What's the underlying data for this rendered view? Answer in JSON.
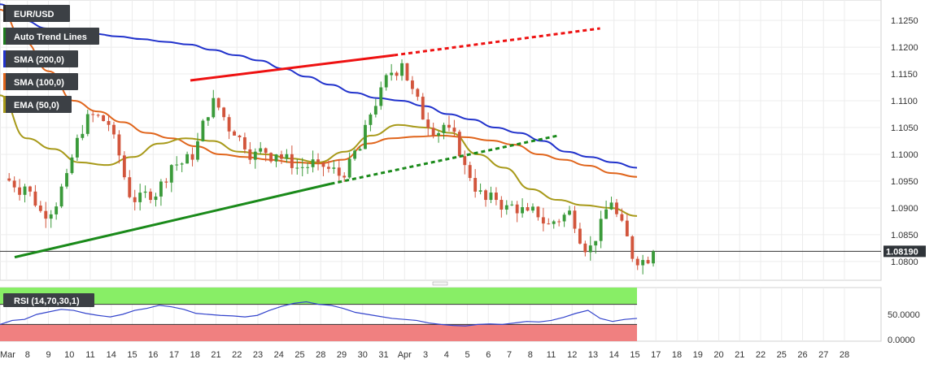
{
  "symbol": "EUR/USD",
  "legend": [
    {
      "label": "EUR/USD",
      "color": "#2b2b2b"
    },
    {
      "label": "Auto Trend Lines",
      "color": "#1e7b1e"
    },
    {
      "label": "SMA (200,0)",
      "color": "#2233cc"
    },
    {
      "label": "SMA (100,0)",
      "color": "#e0651c"
    },
    {
      "label": "EMA (50,0)",
      "color": "#a89a1a"
    }
  ],
  "price_label": "1.08190",
  "rsi_label": "RSI (14,70,30,1)",
  "colors": {
    "up": "#3a9a3a",
    "down": "#d2553c",
    "sma200": "#2233cc",
    "sma100": "#e0651c",
    "ema50": "#a89a1a",
    "trend_red": "#ee1111",
    "trend_green": "#1a8a1a",
    "rsi_line": "#3344cc",
    "rsi_over": "#88ee66",
    "rsi_under": "#f08080"
  },
  "chart_data": {
    "type": "candlestick",
    "title": "EUR/USD",
    "xlabel": "",
    "ylabel": "",
    "x_ticks": [
      "Mar",
      "8",
      "9",
      "10",
      "11",
      "14",
      "15",
      "16",
      "17",
      "18",
      "21",
      "22",
      "23",
      "24",
      "25",
      "28",
      "29",
      "30",
      "31",
      "Apr",
      "3",
      "4",
      "5",
      "6",
      "7",
      "8",
      "11",
      "12",
      "13",
      "14",
      "15",
      "17",
      "18",
      "19",
      "20",
      "21",
      "22",
      "25",
      "26",
      "27",
      "28"
    ],
    "y_ticks": [
      "1.1250",
      "1.1200",
      "1.1150",
      "1.1100",
      "1.1050",
      "1.1000",
      "1.0950",
      "1.0900",
      "1.0850",
      "1.0800"
    ],
    "ylim": [
      1.0765,
      1.1285
    ],
    "current_price": 1.0819,
    "sessions": 31,
    "candles_per_session": 4,
    "key_closes": [
      1.094,
      1.088,
      1.0965,
      1.1075,
      1.1055,
      1.092,
      1.0915,
      1.098,
      1.099,
      1.1105,
      1.1035,
      1.1005,
      1.1,
      1.0975,
      1.0985,
      1.096,
      1.101,
      1.1125,
      1.117,
      1.1065,
      1.1055,
      1.098,
      1.0915,
      1.0905,
      1.0895,
      1.087,
      1.0895,
      1.083,
      1.091,
      1.0805,
      1.0819
    ],
    "series": [
      {
        "name": "SMA (200,0)",
        "values": [
          1.128,
          1.125,
          1.1235,
          1.123,
          1.1225,
          1.122,
          1.1215,
          1.121,
          1.1205,
          1.1195,
          1.1185,
          1.1175,
          1.116,
          1.1145,
          1.113,
          1.1115,
          1.1105,
          1.11,
          1.109,
          1.1075,
          1.1065,
          1.105,
          1.104,
          1.1025,
          1.1005,
          1.0995,
          1.0985,
          1.0975
        ]
      },
      {
        "name": "SMA (100,0)",
        "values": [
          1.127,
          1.121,
          1.1155,
          1.11,
          1.108,
          1.106,
          1.104,
          1.103,
          1.1015,
          1.1,
          1.0995,
          1.099,
          1.0985,
          1.0983,
          1.099,
          1.102,
          1.103,
          1.1033,
          1.1035,
          1.1032,
          1.1026,
          1.1018,
          1.1,
          1.099,
          1.0979,
          1.0965,
          1.0958
        ]
      },
      {
        "name": "EMA (50,0)",
        "values": [
          1.111,
          1.103,
          1.101,
          1.0985,
          1.098,
          1.0995,
          1.102,
          1.103,
          1.1025,
          1.1005,
          1.1,
          1.0992,
          1.0985,
          1.1005,
          1.1035,
          1.1055,
          1.105,
          1.104,
          1.1,
          1.0975,
          1.0935,
          1.0915,
          1.0905,
          1.09,
          1.0885
        ]
      }
    ],
    "trend_lines": [
      {
        "color": "red",
        "from": [
          8,
          1.1138
        ],
        "to": [
          18,
          1.1185
        ],
        "extended_to": [
          28,
          1.1235
        ],
        "style": "solid then dotted"
      },
      {
        "color": "green",
        "from": [
          0,
          1.0808
        ],
        "to": [
          15,
          1.0945
        ],
        "extended_to": [
          26,
          1.1035
        ],
        "style": "solid then dotted"
      }
    ],
    "rsi": {
      "y_ticks": [
        "50.0000",
        "0.0000"
      ],
      "ylim": [
        0,
        100
      ],
      "overbought": 70,
      "oversold": 30,
      "values": [
        30,
        38,
        40,
        50,
        55,
        60,
        58,
        52,
        48,
        45,
        50,
        58,
        62,
        68,
        65,
        60,
        52,
        50,
        48,
        47,
        45,
        48,
        58,
        66,
        72,
        75,
        70,
        68,
        62,
        54,
        50,
        46,
        42,
        40,
        38,
        33,
        30,
        28,
        27,
        30,
        31,
        30,
        33,
        36,
        35,
        38,
        44,
        52,
        58,
        42,
        36,
        40,
        42
      ]
    }
  }
}
